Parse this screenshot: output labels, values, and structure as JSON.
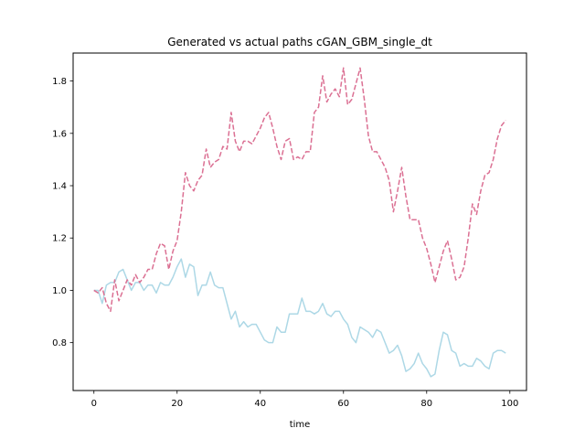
{
  "chart_data": {
    "type": "line",
    "title": "Generated vs actual paths cGAN_GBM_single_dt",
    "xlabel": "time",
    "ylabel": "",
    "xlim": [
      -5,
      104
    ],
    "ylim": [
      0.617,
      1.907
    ],
    "xticks": [
      0,
      20,
      40,
      60,
      80,
      100
    ],
    "yticks": [
      0.8,
      1.0,
      1.2,
      1.4,
      1.6,
      1.8
    ],
    "xtick_labels": [
      "0",
      "20",
      "40",
      "60",
      "80",
      "100"
    ],
    "ytick_labels": [
      "0.8",
      "1.0",
      "1.2",
      "1.4",
      "1.6",
      "1.8"
    ],
    "grid": false,
    "legend": false,
    "series": [
      {
        "color": "#add8e6",
        "style": "solid",
        "x": [
          0,
          1,
          2,
          3,
          4,
          5,
          6,
          7,
          8,
          9,
          10,
          11,
          12,
          13,
          14,
          15,
          16,
          17,
          18,
          19,
          20,
          21,
          22,
          23,
          24,
          25,
          26,
          27,
          28,
          29,
          30,
          31,
          32,
          33,
          34,
          35,
          36,
          37,
          38,
          39,
          40,
          41,
          42,
          43,
          44,
          45,
          46,
          47,
          48,
          49,
          50,
          51,
          52,
          53,
          54,
          55,
          56,
          57,
          58,
          59,
          60,
          61,
          62,
          63,
          64,
          65,
          66,
          67,
          68,
          69,
          70,
          71,
          72,
          73,
          74,
          75,
          76,
          77,
          78,
          79,
          80,
          81,
          82,
          83,
          84,
          85,
          86,
          87,
          88,
          89,
          90,
          91,
          92,
          93,
          94,
          95,
          96,
          97,
          98,
          99
        ],
        "values": [
          1.0,
          1.0,
          0.95,
          1.02,
          1.03,
          1.03,
          1.07,
          1.08,
          1.04,
          1.0,
          1.03,
          1.03,
          1.0,
          1.02,
          1.02,
          0.99,
          1.03,
          1.02,
          1.02,
          1.05,
          1.09,
          1.12,
          1.05,
          1.1,
          1.09,
          0.98,
          1.02,
          1.02,
          1.07,
          1.02,
          1.01,
          1.01,
          0.95,
          0.89,
          0.92,
          0.86,
          0.88,
          0.86,
          0.87,
          0.87,
          0.84,
          0.81,
          0.8,
          0.8,
          0.86,
          0.84,
          0.84,
          0.91,
          0.91,
          0.91,
          0.97,
          0.92,
          0.92,
          0.91,
          0.92,
          0.95,
          0.91,
          0.9,
          0.92,
          0.92,
          0.89,
          0.87,
          0.82,
          0.8,
          0.86,
          0.85,
          0.84,
          0.82,
          0.85,
          0.84,
          0.8,
          0.76,
          0.77,
          0.79,
          0.75,
          0.69,
          0.7,
          0.72,
          0.76,
          0.72,
          0.7,
          0.67,
          0.68,
          0.77,
          0.84,
          0.83,
          0.77,
          0.76,
          0.71,
          0.72,
          0.71,
          0.71,
          0.74,
          0.73,
          0.71,
          0.7,
          0.76,
          0.77,
          0.77,
          0.76
        ]
      },
      {
        "color": "#db7093",
        "style": "dashed",
        "x": [
          0,
          1,
          2,
          3,
          4,
          5,
          6,
          7,
          8,
          9,
          10,
          11,
          12,
          13,
          14,
          15,
          16,
          17,
          18,
          19,
          20,
          21,
          22,
          23,
          24,
          25,
          26,
          27,
          28,
          29,
          30,
          31,
          32,
          33,
          34,
          35,
          36,
          37,
          38,
          39,
          40,
          41,
          42,
          43,
          44,
          45,
          46,
          47,
          48,
          49,
          50,
          51,
          52,
          53,
          54,
          55,
          56,
          57,
          58,
          59,
          60,
          61,
          62,
          63,
          64,
          65,
          66,
          67,
          68,
          69,
          70,
          71,
          72,
          73,
          74,
          75,
          76,
          77,
          78,
          79,
          80,
          81,
          82,
          83,
          84,
          85,
          86,
          87,
          88,
          89,
          90,
          91,
          92,
          93,
          94,
          95,
          96,
          97,
          98,
          99
        ],
        "values": [
          1.0,
          0.99,
          1.01,
          0.95,
          0.92,
          1.04,
          0.96,
          1.0,
          1.04,
          1.02,
          1.06,
          1.03,
          1.05,
          1.08,
          1.08,
          1.14,
          1.18,
          1.17,
          1.08,
          1.15,
          1.19,
          1.3,
          1.45,
          1.4,
          1.38,
          1.42,
          1.44,
          1.54,
          1.47,
          1.49,
          1.5,
          1.55,
          1.54,
          1.68,
          1.57,
          1.53,
          1.57,
          1.57,
          1.56,
          1.59,
          1.62,
          1.66,
          1.68,
          1.62,
          1.55,
          1.5,
          1.57,
          1.58,
          1.5,
          1.51,
          1.5,
          1.53,
          1.53,
          1.68,
          1.7,
          1.82,
          1.72,
          1.75,
          1.77,
          1.74,
          1.85,
          1.71,
          1.73,
          1.79,
          1.85,
          1.73,
          1.59,
          1.53,
          1.53,
          1.5,
          1.47,
          1.42,
          1.3,
          1.38,
          1.47,
          1.36,
          1.27,
          1.27,
          1.27,
          1.2,
          1.16,
          1.1,
          1.03,
          1.09,
          1.15,
          1.19,
          1.12,
          1.04,
          1.05,
          1.09,
          1.2,
          1.33,
          1.29,
          1.38,
          1.44,
          1.45,
          1.5,
          1.58,
          1.63,
          1.65
        ]
      }
    ]
  }
}
